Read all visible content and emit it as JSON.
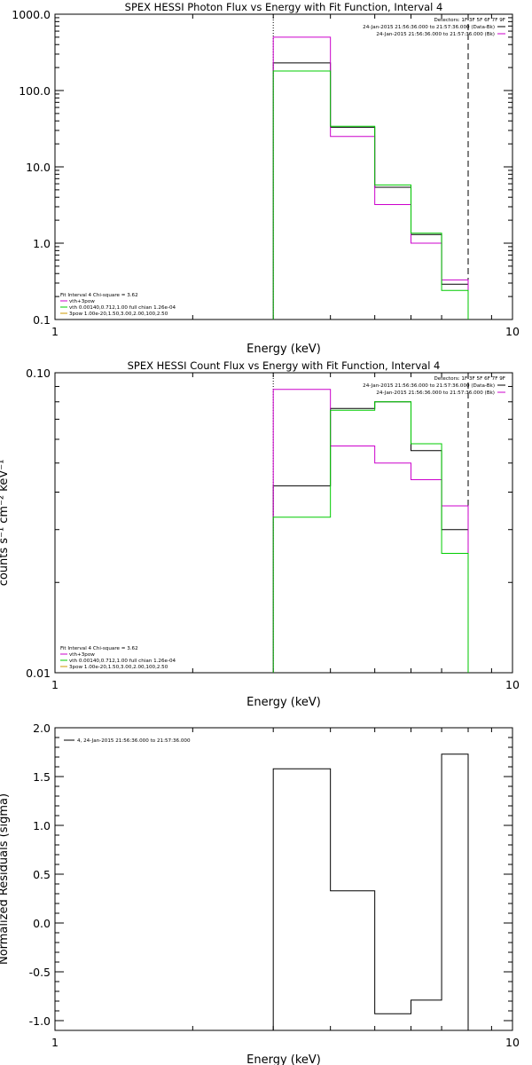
{
  "chart_data": [
    {
      "type": "line",
      "title": "SPEX HESSI Photon Flux vs Energy with Fit Function, Interval 4",
      "xlabel": "Energy (keV)",
      "ylabel": "",
      "x_scale": "log",
      "y_scale": "log",
      "xlim": [
        1,
        10
      ],
      "ylim": [
        0.1,
        1000
      ],
      "x_ticks": [
        "1",
        "10"
      ],
      "y_ticks": [
        "1000.0",
        "100.0",
        "10.0",
        "1.0",
        "0.1"
      ],
      "y_tick_values": [
        1000,
        100,
        10,
        1,
        0.1
      ],
      "bin_edges": [
        3.0,
        4.0,
        5.0,
        6.0,
        7.0,
        8.0
      ],
      "series": [
        {
          "name": "",
          "color": "#000000",
          "values": [
            230,
            33,
            5.4,
            1.3,
            0.29
          ]
        },
        {
          "name": "",
          "color": "#cc00cc",
          "values": [
            500,
            25,
            3.2,
            1.0,
            0.33
          ]
        },
        {
          "name": "",
          "color": "#00cc00",
          "values": [
            180,
            34,
            5.8,
            1.35,
            0.24
          ]
        }
      ],
      "vlines": [
        {
          "x": 3.0,
          "style": "dotted"
        },
        {
          "x": 8.0,
          "style": "dashed"
        }
      ],
      "detectors": "Detectors: 1F 3F 5F 6F 7F 9F",
      "time_legend": [
        {
          "text": "24-Jan-2015 21:56:36.000 to 21:57:36.000 (Data-Bk)",
          "color": "#000000"
        },
        {
          "text": "24-Jan-2015 21:56:36.000 to 21:57:36.000 (Bk)",
          "color": "#cc00cc"
        }
      ],
      "fit_legend": [
        {
          "text": "Fit Interval  4   Chi-square = 3.62",
          "color": "#000000"
        },
        {
          "text": "vth+3pow",
          "color": "#cc00cc"
        },
        {
          "text": "vth 0.00140,0.712,1.00  full chian 1.26e-04",
          "color": "#00cc00"
        },
        {
          "text": "3pow 1.00e-20,1.50,3.00,2.00,100,2.50",
          "color": "#cc9900"
        }
      ]
    },
    {
      "type": "line",
      "title": "SPEX HESSI Count Flux vs Energy with Fit Function, Interval 4",
      "xlabel": "Energy (keV)",
      "ylabel": "counts s⁻¹ cm⁻² keV⁻¹",
      "x_scale": "log",
      "y_scale": "log",
      "xlim": [
        1,
        10
      ],
      "ylim": [
        0.01,
        0.1
      ],
      "x_ticks": [
        "1",
        "10"
      ],
      "y_ticks": [
        "0.10",
        "0.01"
      ],
      "y_tick_values": [
        0.1,
        0.01
      ],
      "bin_edges": [
        3.0,
        4.0,
        5.0,
        6.0,
        7.0,
        8.0
      ],
      "series": [
        {
          "name": "",
          "color": "#000000",
          "values": [
            0.042,
            0.076,
            0.08,
            0.055,
            0.03
          ]
        },
        {
          "name": "",
          "color": "#cc00cc",
          "values": [
            0.088,
            0.057,
            0.05,
            0.044,
            0.036
          ]
        },
        {
          "name": "",
          "color": "#00cc00",
          "values": [
            0.033,
            0.075,
            0.08,
            0.058,
            0.025
          ]
        }
      ],
      "vlines": [
        {
          "x": 3.0,
          "style": "dotted"
        },
        {
          "x": 8.0,
          "style": "dashed"
        }
      ],
      "detectors": "Detectors: 1F 3F 5F 6F 7F 9F",
      "time_legend": [
        {
          "text": "24-Jan-2015 21:56:36.000 to 21:57:36.000 (Data-Bk)",
          "color": "#000000"
        },
        {
          "text": "24-Jan-2015 21:56:36.000 to 21:57:36.000 (Bk)",
          "color": "#cc00cc"
        }
      ],
      "fit_legend": [
        {
          "text": "Fit Interval  4   Chi-square = 3.62",
          "color": "#000000"
        },
        {
          "text": "vth+3pow",
          "color": "#cc00cc"
        },
        {
          "text": "vth 0.00140,0.712,1.00  full chian 1.26e-04",
          "color": "#00cc00"
        },
        {
          "text": "3pow 1.00e-20,1.50,3.00,2.00,100,2.50",
          "color": "#cc9900"
        }
      ]
    },
    {
      "type": "line",
      "title": "",
      "xlabel": "Energy (keV)",
      "ylabel": "Normalized Residuals (sigma)",
      "x_scale": "log",
      "y_scale": "linear",
      "xlim": [
        1,
        10
      ],
      "ylim": [
        -1.1,
        2.0
      ],
      "x_ticks": [
        "1",
        "10"
      ],
      "y_ticks": [
        "2.0",
        "1.5",
        "1.0",
        "0.5",
        "0.0",
        "-0.5",
        "-1.0"
      ],
      "y_tick_values": [
        2.0,
        1.5,
        1.0,
        0.5,
        0.0,
        -0.5,
        -1.0
      ],
      "bin_edges": [
        3.0,
        4.0,
        5.0,
        6.0,
        7.0,
        8.0
      ],
      "series": [
        {
          "name": "4, 24-Jan-2015 21:56:36.000 to 21:57:36.000",
          "color": "#000000",
          "values": [
            1.58,
            0.33,
            -0.93,
            -0.79,
            1.73
          ]
        }
      ],
      "vlines": [],
      "legend": "4, 24-Jan-2015 21:56:36.000 to 21:57:36.000"
    }
  ]
}
